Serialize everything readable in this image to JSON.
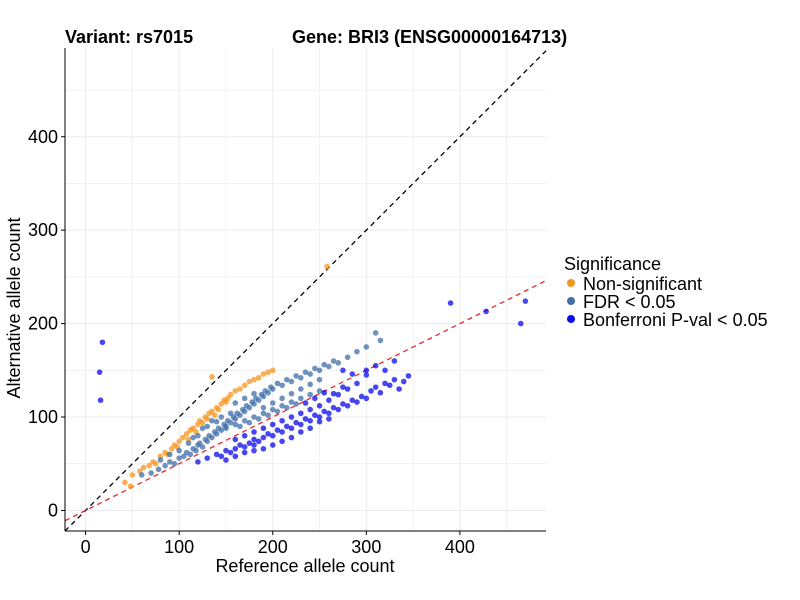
{
  "chart_data": {
    "type": "scatter",
    "title_left": "Variant: rs7015",
    "title_right": "Gene: BRI3 (ENSG00000164713)",
    "xlabel": "Reference allele count",
    "ylabel": "Alternative allele count",
    "xlim": [
      -22,
      492
    ],
    "ylim": [
      -22,
      495
    ],
    "xticks": [
      0,
      100,
      200,
      300,
      400
    ],
    "yticks": [
      0,
      100,
      200,
      300,
      400
    ],
    "grid": true,
    "legend": {
      "title": "Significance",
      "position": "right",
      "entries": [
        {
          "label": "Non-significant",
          "color": "#f7941d"
        },
        {
          "label": "FDR < 0.05",
          "color": "#3f6fa8"
        },
        {
          "label": "Bonferroni P-val < 0.05",
          "color": "#0a0aee"
        }
      ]
    },
    "reference_lines": [
      {
        "name": "identity",
        "slope": 1.0,
        "intercept": 0,
        "color": "#000000",
        "style": "dashed"
      },
      {
        "name": "fit",
        "slope": 0.5,
        "intercept": 0,
        "color": "#e8262b",
        "style": "dashed"
      }
    ],
    "series": [
      {
        "name": "Non-significant",
        "color": "#f7941d",
        "points": [
          [
            42,
            30
          ],
          [
            48,
            26
          ],
          [
            50,
            38
          ],
          [
            58,
            42
          ],
          [
            62,
            46
          ],
          [
            68,
            48
          ],
          [
            72,
            52
          ],
          [
            75,
            50
          ],
          [
            80,
            58
          ],
          [
            85,
            62
          ],
          [
            88,
            60
          ],
          [
            92,
            66
          ],
          [
            95,
            70
          ],
          [
            98,
            68
          ],
          [
            100,
            74
          ],
          [
            104,
            78
          ],
          [
            108,
            82
          ],
          [
            110,
            76
          ],
          [
            112,
            86
          ],
          [
            115,
            88
          ],
          [
            118,
            84
          ],
          [
            120,
            92
          ],
          [
            122,
            96
          ],
          [
            125,
            94
          ],
          [
            128,
            100
          ],
          [
            130,
            98
          ],
          [
            132,
            104
          ],
          [
            135,
            106
          ],
          [
            138,
            102
          ],
          [
            140,
            110
          ],
          [
            142,
            108
          ],
          [
            145,
            114
          ],
          [
            148,
            118
          ],
          [
            150,
            116
          ],
          [
            152,
            120
          ],
          [
            155,
            124
          ],
          [
            160,
            128
          ],
          [
            165,
            130
          ],
          [
            170,
            134
          ],
          [
            175,
            138
          ],
          [
            180,
            140
          ],
          [
            185,
            142
          ],
          [
            190,
            146
          ],
          [
            195,
            148
          ],
          [
            135,
            143
          ],
          [
            200,
            150
          ],
          [
            258,
            261
          ]
        ]
      },
      {
        "name": "FDR < 0.05",
        "color": "#3f6fa8",
        "points": [
          [
            60,
            38
          ],
          [
            70,
            40
          ],
          [
            78,
            44
          ],
          [
            85,
            48
          ],
          [
            90,
            52
          ],
          [
            95,
            50
          ],
          [
            100,
            56
          ],
          [
            105,
            58
          ],
          [
            108,
            62
          ],
          [
            112,
            60
          ],
          [
            115,
            66
          ],
          [
            118,
            64
          ],
          [
            120,
            70
          ],
          [
            122,
            72
          ],
          [
            125,
            68
          ],
          [
            128,
            76
          ],
          [
            130,
            74
          ],
          [
            132,
            80
          ],
          [
            135,
            78
          ],
          [
            138,
            84
          ],
          [
            140,
            82
          ],
          [
            142,
            88
          ],
          [
            145,
            86
          ],
          [
            148,
            92
          ],
          [
            150,
            90
          ],
          [
            152,
            96
          ],
          [
            155,
            94
          ],
          [
            158,
            100
          ],
          [
            160,
            98
          ],
          [
            162,
            104
          ],
          [
            165,
            102
          ],
          [
            168,
            108
          ],
          [
            170,
            106
          ],
          [
            172,
            112
          ],
          [
            175,
            110
          ],
          [
            178,
            116
          ],
          [
            180,
            114
          ],
          [
            182,
            120
          ],
          [
            185,
            118
          ],
          [
            188,
            124
          ],
          [
            190,
            122
          ],
          [
            192,
            128
          ],
          [
            195,
            126
          ],
          [
            198,
            132
          ],
          [
            200,
            130
          ],
          [
            205,
            136
          ],
          [
            210,
            134
          ],
          [
            215,
            140
          ],
          [
            220,
            138
          ],
          [
            225,
            144
          ],
          [
            230,
            142
          ],
          [
            235,
            148
          ],
          [
            240,
            146
          ],
          [
            245,
            152
          ],
          [
            250,
            150
          ],
          [
            255,
            156
          ],
          [
            260,
            154
          ],
          [
            265,
            160
          ],
          [
            270,
            158
          ],
          [
            280,
            164
          ],
          [
            290,
            170
          ],
          [
            300,
            175
          ],
          [
            310,
            190
          ],
          [
            315,
            182
          ],
          [
            140,
            95
          ],
          [
            150,
            88
          ],
          [
            160,
            92
          ],
          [
            170,
            96
          ],
          [
            180,
            100
          ],
          [
            190,
            104
          ],
          [
            200,
            108
          ],
          [
            210,
            112
          ],
          [
            220,
            116
          ],
          [
            230,
            120
          ],
          [
            240,
            124
          ],
          [
            250,
            128
          ],
          [
            145,
            100
          ],
          [
            155,
            104
          ],
          [
            165,
            90
          ],
          [
            175,
            94
          ],
          [
            185,
            98
          ],
          [
            195,
            102
          ],
          [
            205,
            106
          ],
          [
            215,
            110
          ],
          [
            225,
            114
          ],
          [
            130,
            90
          ],
          [
            120,
            80
          ],
          [
            110,
            72
          ],
          [
            100,
            64
          ],
          [
            90,
            60
          ],
          [
            80,
            54
          ],
          [
            125,
            88
          ],
          [
            135,
            96
          ],
          [
            115,
            78
          ],
          [
            160,
            115
          ],
          [
            170,
            120
          ],
          [
            180,
            125
          ],
          [
            190,
            110
          ],
          [
            200,
            115
          ],
          [
            210,
            120
          ],
          [
            220,
            125
          ],
          [
            230,
            130
          ],
          [
            240,
            135
          ],
          [
            250,
            140
          ]
        ]
      },
      {
        "name": "Bonferroni P-val < 0.05",
        "color": "#0a0aee",
        "points": [
          [
            18,
            180
          ],
          [
            15,
            148
          ],
          [
            16,
            118
          ],
          [
            390,
            222
          ],
          [
            428,
            213
          ],
          [
            470,
            224
          ],
          [
            465,
            200
          ],
          [
            120,
            52
          ],
          [
            130,
            56
          ],
          [
            140,
            60
          ],
          [
            145,
            58
          ],
          [
            150,
            64
          ],
          [
            155,
            62
          ],
          [
            160,
            66
          ],
          [
            165,
            70
          ],
          [
            170,
            68
          ],
          [
            175,
            72
          ],
          [
            180,
            76
          ],
          [
            185,
            74
          ],
          [
            190,
            78
          ],
          [
            195,
            82
          ],
          [
            200,
            80
          ],
          [
            205,
            86
          ],
          [
            210,
            84
          ],
          [
            215,
            90
          ],
          [
            220,
            88
          ],
          [
            225,
            94
          ],
          [
            230,
            92
          ],
          [
            235,
            98
          ],
          [
            240,
            96
          ],
          [
            245,
            102
          ],
          [
            250,
            100
          ],
          [
            255,
            106
          ],
          [
            260,
            104
          ],
          [
            265,
            110
          ],
          [
            270,
            108
          ],
          [
            275,
            114
          ],
          [
            280,
            112
          ],
          [
            285,
            118
          ],
          [
            290,
            116
          ],
          [
            295,
            122
          ],
          [
            300,
            120
          ],
          [
            305,
            128
          ],
          [
            310,
            132
          ],
          [
            315,
            126
          ],
          [
            320,
            136
          ],
          [
            325,
            134
          ],
          [
            330,
            140
          ],
          [
            335,
            130
          ],
          [
            340,
            138
          ],
          [
            345,
            144
          ],
          [
            275,
            150
          ],
          [
            285,
            146
          ],
          [
            300,
            145
          ],
          [
            310,
            155
          ],
          [
            320,
            150
          ],
          [
            160,
            76
          ],
          [
            170,
            80
          ],
          [
            180,
            84
          ],
          [
            190,
            88
          ],
          [
            200,
            92
          ],
          [
            210,
            96
          ],
          [
            220,
            100
          ],
          [
            230,
            104
          ],
          [
            240,
            108
          ],
          [
            250,
            112
          ],
          [
            260,
            118
          ],
          [
            270,
            124
          ],
          [
            280,
            130
          ],
          [
            290,
            136
          ],
          [
            250,
            95
          ],
          [
            260,
            98
          ],
          [
            240,
            88
          ],
          [
            230,
            84
          ],
          [
            220,
            78
          ],
          [
            210,
            74
          ],
          [
            200,
            70
          ],
          [
            190,
            66
          ],
          [
            180,
            64
          ],
          [
            265,
            125
          ],
          [
            275,
            132
          ],
          [
            235,
            115
          ],
          [
            245,
            120
          ],
          [
            255,
            126
          ],
          [
            300,
            150
          ],
          [
            330,
            160
          ],
          [
            180,
            70
          ],
          [
            170,
            62
          ],
          [
            160,
            58
          ],
          [
            150,
            54
          ]
        ]
      }
    ]
  }
}
